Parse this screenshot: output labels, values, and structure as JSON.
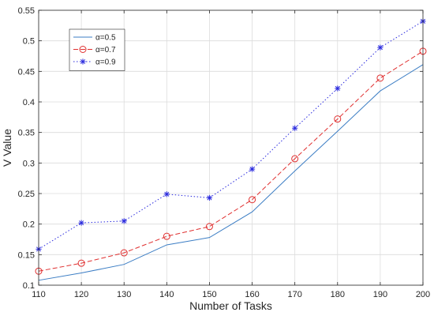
{
  "chart_data": {
    "type": "line",
    "xlabel": "Number of Tasks",
    "ylabel": "V Value",
    "x": [
      110,
      120,
      130,
      140,
      150,
      160,
      170,
      180,
      190,
      200
    ],
    "xlim": [
      110,
      200
    ],
    "ylim": [
      0.1,
      0.55
    ],
    "xticks": [
      "110",
      "120",
      "130",
      "140",
      "150",
      "160",
      "170",
      "180",
      "190",
      "200"
    ],
    "yticks": [
      "0.1",
      "0.15",
      "0.2",
      "0.25",
      "0.3",
      "0.35",
      "0.4",
      "0.45",
      "0.5",
      "0.55"
    ],
    "grid": true,
    "legend_position": "top-left",
    "series": [
      {
        "name": "α=0.5",
        "values": [
          0.108,
          0.12,
          0.134,
          0.166,
          0.178,
          0.22,
          0.287,
          0.352,
          0.418,
          0.461
        ],
        "color": "#3b7dc4",
        "line_style": "solid",
        "marker": "none"
      },
      {
        "name": "α=0.7",
        "values": [
          0.123,
          0.136,
          0.153,
          0.18,
          0.196,
          0.24,
          0.307,
          0.372,
          0.439,
          0.483
        ],
        "color": "#e03030",
        "line_style": "dashed",
        "marker": "circle"
      },
      {
        "name": "α=0.9",
        "values": [
          0.159,
          0.202,
          0.205,
          0.249,
          0.243,
          0.29,
          0.357,
          0.422,
          0.489,
          0.532
        ],
        "color": "#2b2bde",
        "line_style": "dotted",
        "marker": "asterisk"
      }
    ]
  }
}
